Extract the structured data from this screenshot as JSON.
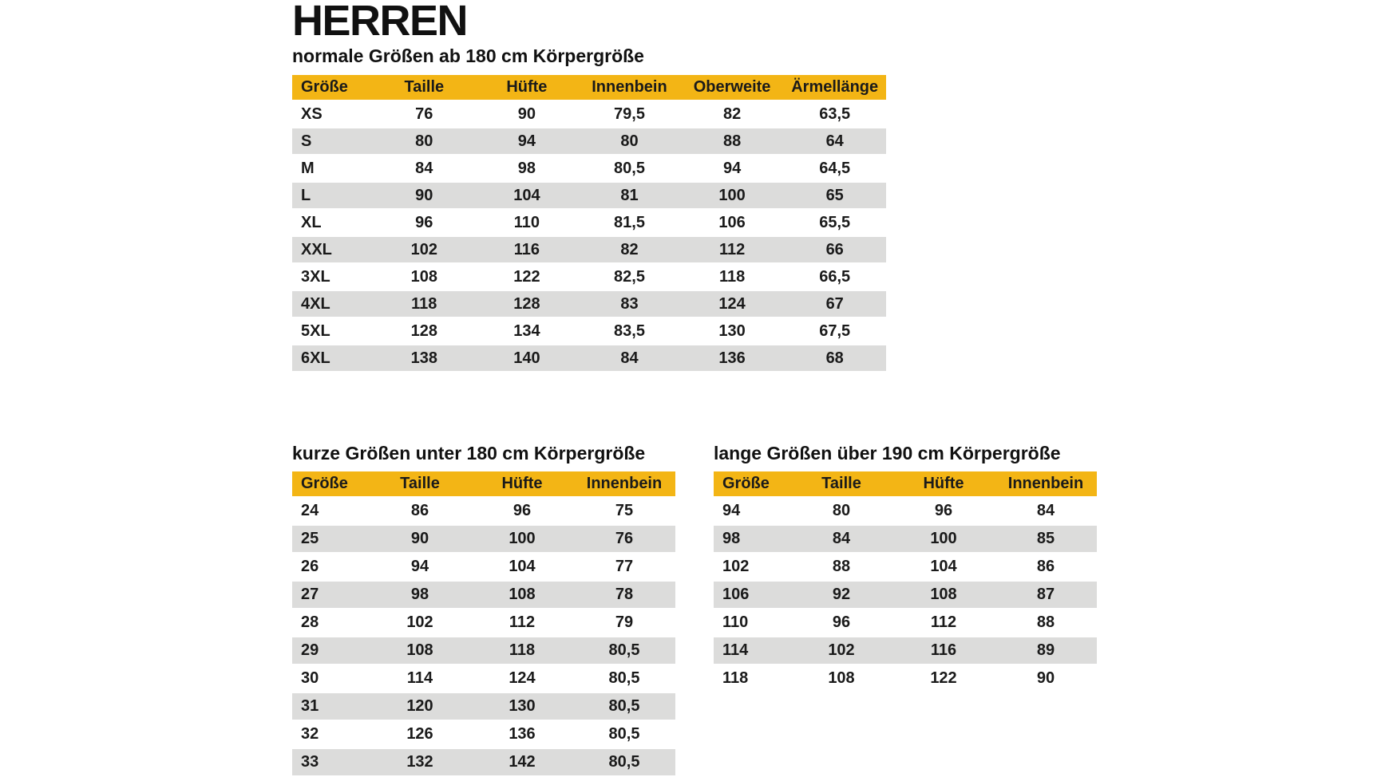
{
  "page": {
    "title": "HERREN"
  },
  "colors": {
    "header_bg": "#F3B515",
    "row_alt_bg": "#DCDCDB",
    "row_bg": "#FFFFFF",
    "text": "#1A1A1A"
  },
  "tables": {
    "normal": {
      "title": "normale Größen ab 180 cm Körpergröße",
      "columns": [
        "Größe",
        "Taille",
        "Hüfte",
        "Innenbein",
        "Oberweite",
        "Ärmellänge"
      ],
      "rows": [
        [
          "XS",
          "76",
          "90",
          "79,5",
          "82",
          "63,5"
        ],
        [
          "S",
          "80",
          "94",
          "80",
          "88",
          "64"
        ],
        [
          "M",
          "84",
          "98",
          "80,5",
          "94",
          "64,5"
        ],
        [
          "L",
          "90",
          "104",
          "81",
          "100",
          "65"
        ],
        [
          "XL",
          "96",
          "110",
          "81,5",
          "106",
          "65,5"
        ],
        [
          "XXL",
          "102",
          "116",
          "82",
          "112",
          "66"
        ],
        [
          "3XL",
          "108",
          "122",
          "82,5",
          "118",
          "66,5"
        ],
        [
          "4XL",
          "118",
          "128",
          "83",
          "124",
          "67"
        ],
        [
          "5XL",
          "128",
          "134",
          "83,5",
          "130",
          "67,5"
        ],
        [
          "6XL",
          "138",
          "140",
          "84",
          "136",
          "68"
        ]
      ]
    },
    "short": {
      "title": "kurze Größen unter 180 cm Körpergröße",
      "columns": [
        "Größe",
        "Taille",
        "Hüfte",
        "Innenbein"
      ],
      "rows": [
        [
          "24",
          "86",
          "96",
          "75"
        ],
        [
          "25",
          "90",
          "100",
          "76"
        ],
        [
          "26",
          "94",
          "104",
          "77"
        ],
        [
          "27",
          "98",
          "108",
          "78"
        ],
        [
          "28",
          "102",
          "112",
          "79"
        ],
        [
          "29",
          "108",
          "118",
          "80,5"
        ],
        [
          "30",
          "114",
          "124",
          "80,5"
        ],
        [
          "31",
          "120",
          "130",
          "80,5"
        ],
        [
          "32",
          "126",
          "136",
          "80,5"
        ],
        [
          "33",
          "132",
          "142",
          "80,5"
        ]
      ]
    },
    "long": {
      "title": "lange Größen über 190 cm Körpergröße",
      "columns": [
        "Größe",
        "Taille",
        "Hüfte",
        "Innenbein"
      ],
      "rows": [
        [
          "94",
          "80",
          "96",
          "84"
        ],
        [
          "98",
          "84",
          "100",
          "85"
        ],
        [
          "102",
          "88",
          "104",
          "86"
        ],
        [
          "106",
          "92",
          "108",
          "87"
        ],
        [
          "110",
          "96",
          "112",
          "88"
        ],
        [
          "114",
          "102",
          "116",
          "89"
        ],
        [
          "118",
          "108",
          "122",
          "90"
        ]
      ]
    }
  }
}
